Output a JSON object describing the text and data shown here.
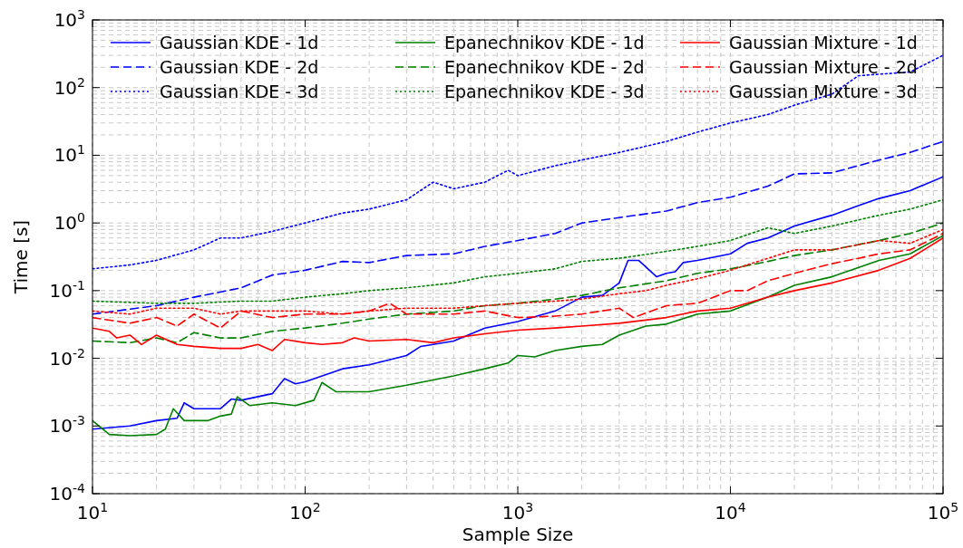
{
  "chart_data": {
    "type": "line",
    "xlabel": "Sample Size",
    "ylabel": "Time [s]",
    "log": "xy",
    "grid": true,
    "legend": "top",
    "xlim": [
      10,
      100000
    ],
    "ylim": [
      0.0001,
      1000
    ],
    "xticks": [
      {
        "value": 10,
        "label": "10$^{1}$"
      },
      {
        "value": 100,
        "label": "10$^{2}$"
      },
      {
        "value": 1000,
        "label": "10$^{3}$"
      },
      {
        "value": 10000,
        "label": "10$^{4}$"
      },
      {
        "value": 100000,
        "label": "10$^{5}$"
      }
    ],
    "yticks": [
      {
        "value": 0.0001,
        "label": "10$^{-4}$"
      },
      {
        "value": 0.001,
        "label": "10$^{-3}$"
      },
      {
        "value": 0.01,
        "label": "10$^{-2}$"
      },
      {
        "value": 0.1,
        "label": "10$^{-1}$"
      },
      {
        "value": 1,
        "label": "10$^{0}$"
      },
      {
        "value": 10,
        "label": "10$^{1}$"
      },
      {
        "value": 100,
        "label": "10$^{2}$"
      },
      {
        "value": 1000,
        "label": "10$^{3}$"
      }
    ],
    "series": [
      {
        "name": "Gaussian KDE - 1d",
        "color": "#0000ff",
        "line_style": "solid",
        "x": [
          10,
          15,
          20,
          25,
          27,
          30,
          40,
          45,
          50,
          70,
          80,
          90,
          100,
          150,
          200,
          300,
          350,
          500,
          700,
          1000,
          1500,
          2000,
          2500,
          3000,
          3300,
          3700,
          4500,
          5000,
          5500,
          6000,
          7000,
          10000,
          12000,
          15000,
          20000,
          30000,
          40000,
          50000,
          70000,
          100000
        ],
        "values": [
          0.0009,
          0.001,
          0.0012,
          0.0013,
          0.0022,
          0.0018,
          0.0018,
          0.0025,
          0.0024,
          0.003,
          0.005,
          0.0042,
          0.0045,
          0.007,
          0.008,
          0.011,
          0.015,
          0.018,
          0.028,
          0.035,
          0.05,
          0.08,
          0.085,
          0.13,
          0.28,
          0.28,
          0.16,
          0.18,
          0.19,
          0.26,
          0.28,
          0.35,
          0.5,
          0.6,
          0.9,
          1.3,
          1.8,
          2.3,
          3,
          4.8
        ]
      },
      {
        "name": "Gaussian KDE - 2d",
        "color": "#0000ff",
        "line_style": "dashed",
        "x": [
          10,
          20,
          30,
          50,
          70,
          80,
          100,
          150,
          200,
          300,
          500,
          700,
          1000,
          1500,
          2000,
          3000,
          5000,
          7000,
          10000,
          15000,
          20000,
          30000,
          50000,
          70000,
          100000
        ],
        "values": [
          0.045,
          0.06,
          0.08,
          0.11,
          0.17,
          0.18,
          0.2,
          0.27,
          0.26,
          0.33,
          0.35,
          0.45,
          0.55,
          0.7,
          1,
          1.2,
          1.5,
          2,
          2.4,
          3.5,
          5.3,
          5.5,
          8.5,
          11,
          16
        ]
      },
      {
        "name": "Gaussian KDE - 3d",
        "color": "#0000ff",
        "line_style": "dotted",
        "x": [
          10,
          15,
          20,
          30,
          40,
          50,
          70,
          100,
          150,
          200,
          300,
          400,
          500,
          700,
          900,
          1000,
          1500,
          2000,
          3000,
          5000,
          7000,
          10000,
          15000,
          20000,
          30000,
          40000,
          70000,
          100000
        ],
        "values": [
          0.21,
          0.24,
          0.28,
          0.4,
          0.6,
          0.6,
          0.75,
          1,
          1.4,
          1.6,
          2.2,
          4,
          3.2,
          4,
          6,
          5,
          7,
          8.5,
          11,
          16,
          22,
          30,
          40,
          55,
          80,
          150,
          170,
          300
        ]
      },
      {
        "name": "Epanechnikov KDE - 1d",
        "color": "#008000",
        "line_style": "solid",
        "x": [
          10,
          12,
          15,
          20,
          22,
          24,
          27,
          35,
          40,
          45,
          48,
          55,
          70,
          90,
          110,
          120,
          140,
          200,
          300,
          500,
          700,
          900,
          1000,
          1200,
          1500,
          2000,
          2500,
          3000,
          4000,
          5000,
          7000,
          10000,
          15000,
          20000,
          30000,
          50000,
          70000,
          100000
        ],
        "values": [
          0.0012,
          0.00075,
          0.00072,
          0.00075,
          0.0009,
          0.0018,
          0.0012,
          0.0012,
          0.0014,
          0.0015,
          0.0027,
          0.002,
          0.0022,
          0.002,
          0.0024,
          0.0044,
          0.0032,
          0.0032,
          0.004,
          0.0055,
          0.007,
          0.0085,
          0.011,
          0.0105,
          0.013,
          0.015,
          0.016,
          0.022,
          0.03,
          0.032,
          0.045,
          0.05,
          0.08,
          0.12,
          0.16,
          0.28,
          0.35,
          0.65
        ]
      },
      {
        "name": "Epanechnikov KDE - 2d",
        "color": "#008000",
        "line_style": "dashed",
        "x": [
          10,
          15,
          20,
          25,
          30,
          40,
          50,
          70,
          100,
          150,
          200,
          300,
          500,
          700,
          1000,
          1500,
          2000,
          3000,
          5000,
          7000,
          10000,
          15000,
          20000,
          30000,
          50000,
          70000,
          100000
        ],
        "values": [
          0.018,
          0.017,
          0.02,
          0.017,
          0.024,
          0.02,
          0.02,
          0.025,
          0.028,
          0.033,
          0.038,
          0.045,
          0.05,
          0.06,
          0.065,
          0.075,
          0.085,
          0.11,
          0.14,
          0.18,
          0.21,
          0.27,
          0.33,
          0.4,
          0.55,
          0.7,
          1
        ]
      },
      {
        "name": "Epanechnikov KDE - 3d",
        "color": "#008000",
        "line_style": "dotted",
        "x": [
          10,
          20,
          30,
          50,
          70,
          100,
          150,
          200,
          300,
          500,
          700,
          1000,
          1500,
          2000,
          3000,
          5000,
          7000,
          10000,
          15000,
          20000,
          30000,
          50000,
          70000,
          100000
        ],
        "values": [
          0.07,
          0.065,
          0.065,
          0.07,
          0.07,
          0.08,
          0.09,
          0.1,
          0.11,
          0.13,
          0.16,
          0.18,
          0.21,
          0.27,
          0.3,
          0.38,
          0.45,
          0.55,
          0.85,
          0.7,
          0.9,
          1.3,
          1.6,
          2.2
        ]
      },
      {
        "name": "Gaussian Mixture - 1d",
        "color": "#ff0000",
        "line_style": "solid",
        "x": [
          10,
          12,
          13,
          15,
          17,
          20,
          25,
          30,
          40,
          50,
          60,
          70,
          80,
          100,
          120,
          150,
          170,
          200,
          300,
          400,
          500,
          700,
          1000,
          1500,
          2000,
          3000,
          5000,
          7000,
          10000,
          15000,
          20000,
          30000,
          50000,
          70000,
          100000
        ],
        "values": [
          0.028,
          0.025,
          0.02,
          0.022,
          0.016,
          0.022,
          0.016,
          0.015,
          0.014,
          0.014,
          0.016,
          0.013,
          0.019,
          0.017,
          0.016,
          0.017,
          0.02,
          0.018,
          0.019,
          0.017,
          0.02,
          0.023,
          0.026,
          0.028,
          0.03,
          0.033,
          0.04,
          0.05,
          0.055,
          0.08,
          0.1,
          0.13,
          0.2,
          0.3,
          0.6
        ]
      },
      {
        "name": "Gaussian Mixture - 2d",
        "color": "#ff0000",
        "line_style": "dashed",
        "x": [
          10,
          15,
          20,
          25,
          30,
          40,
          50,
          70,
          100,
          150,
          200,
          250,
          300,
          500,
          700,
          1000,
          1500,
          2000,
          3000,
          3500,
          5000,
          7000,
          10000,
          12000,
          15000,
          20000,
          30000,
          40000,
          50000,
          70000,
          100000
        ],
        "values": [
          0.04,
          0.033,
          0.04,
          0.03,
          0.045,
          0.028,
          0.05,
          0.04,
          0.045,
          0.045,
          0.05,
          0.065,
          0.045,
          0.045,
          0.05,
          0.04,
          0.042,
          0.045,
          0.055,
          0.04,
          0.06,
          0.065,
          0.1,
          0.1,
          0.14,
          0.18,
          0.25,
          0.3,
          0.35,
          0.4,
          0.7
        ]
      },
      {
        "name": "Gaussian Mixture - 3d",
        "color": "#ff0000",
        "line_style": "dotted",
        "x": [
          10,
          15,
          20,
          30,
          40,
          50,
          70,
          100,
          150,
          200,
          300,
          500,
          700,
          1000,
          1500,
          2000,
          3000,
          4000,
          5000,
          7000,
          10000,
          15000,
          20000,
          30000,
          50000,
          70000,
          100000
        ],
        "values": [
          0.05,
          0.045,
          0.055,
          0.055,
          0.045,
          0.05,
          0.05,
          0.05,
          0.045,
          0.05,
          0.055,
          0.055,
          0.06,
          0.065,
          0.07,
          0.075,
          0.09,
          0.1,
          0.12,
          0.15,
          0.2,
          0.3,
          0.4,
          0.4,
          0.55,
          0.5,
          0.8
        ]
      }
    ]
  }
}
